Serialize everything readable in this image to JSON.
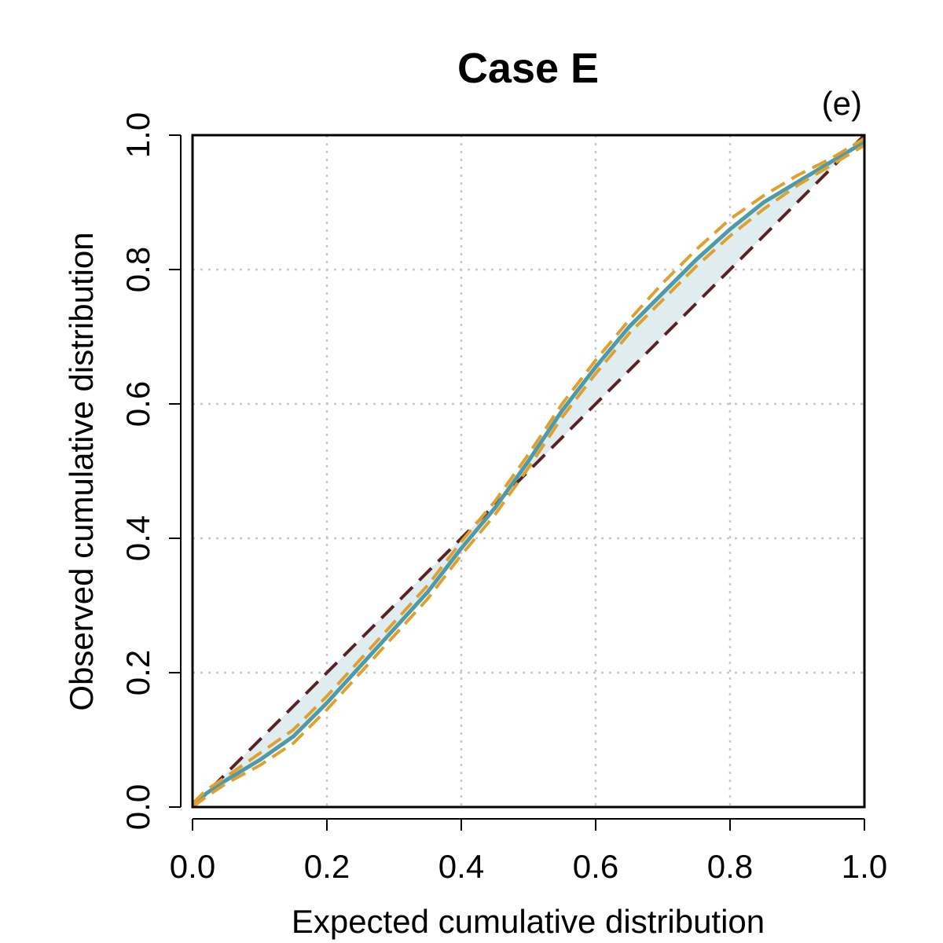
{
  "chart_data": {
    "type": "line",
    "title": "Case E",
    "panel_label": "(e)",
    "xlabel": "Expected cumulative distribution",
    "ylabel": "Observed cumulative distribution",
    "xlim": [
      0,
      1
    ],
    "ylim": [
      0,
      1
    ],
    "x_ticks": [
      "0.0",
      "0.2",
      "0.4",
      "0.6",
      "0.8",
      "1.0"
    ],
    "y_ticks": [
      "0.0",
      "0.2",
      "0.4",
      "0.6",
      "0.8",
      "1.0"
    ],
    "grid": true,
    "colors": {
      "observed": "#4e9aa8",
      "band": "#dfedf1",
      "bounds": "#e0a030",
      "reference": "#5a2222",
      "grid": "#c8c8c8"
    },
    "series": [
      {
        "style": "solid",
        "x": [
          0.0,
          0.02,
          0.05,
          0.1,
          0.15,
          0.2,
          0.25,
          0.3,
          0.35,
          0.4,
          0.45,
          0.5,
          0.55,
          0.6,
          0.65,
          0.7,
          0.75,
          0.8,
          0.85,
          0.9,
          0.95,
          1.0
        ],
        "y": [
          0.0,
          0.02,
          0.04,
          0.07,
          0.105,
          0.155,
          0.21,
          0.265,
          0.32,
          0.385,
          0.445,
          0.515,
          0.59,
          0.655,
          0.715,
          0.765,
          0.815,
          0.86,
          0.9,
          0.93,
          0.96,
          0.99
        ]
      },
      {
        "style": "dashed-upper",
        "x": [
          0.0,
          0.02,
          0.05,
          0.1,
          0.15,
          0.2,
          0.25,
          0.3,
          0.35,
          0.4,
          0.45,
          0.5,
          0.55,
          0.6,
          0.65,
          0.7,
          0.75,
          0.8,
          0.85,
          0.9,
          0.95,
          1.0
        ],
        "y": [
          0.005,
          0.025,
          0.045,
          0.08,
          0.115,
          0.165,
          0.22,
          0.275,
          0.33,
          0.395,
          0.455,
          0.525,
          0.6,
          0.665,
          0.725,
          0.78,
          0.83,
          0.875,
          0.91,
          0.94,
          0.965,
          0.995
        ]
      },
      {
        "style": "dashed-lower",
        "x": [
          0.0,
          0.02,
          0.05,
          0.1,
          0.15,
          0.2,
          0.25,
          0.3,
          0.35,
          0.4,
          0.45,
          0.5,
          0.55,
          0.6,
          0.65,
          0.7,
          0.75,
          0.8,
          0.85,
          0.9,
          0.95,
          1.0
        ],
        "y": [
          0.0,
          0.015,
          0.035,
          0.062,
          0.095,
          0.145,
          0.2,
          0.255,
          0.31,
          0.375,
          0.435,
          0.505,
          0.58,
          0.645,
          0.705,
          0.755,
          0.805,
          0.85,
          0.89,
          0.925,
          0.955,
          0.985
        ]
      },
      {
        "style": "reference",
        "x": [
          0.0,
          1.0
        ],
        "y": [
          0.0,
          1.0
        ]
      }
    ]
  }
}
